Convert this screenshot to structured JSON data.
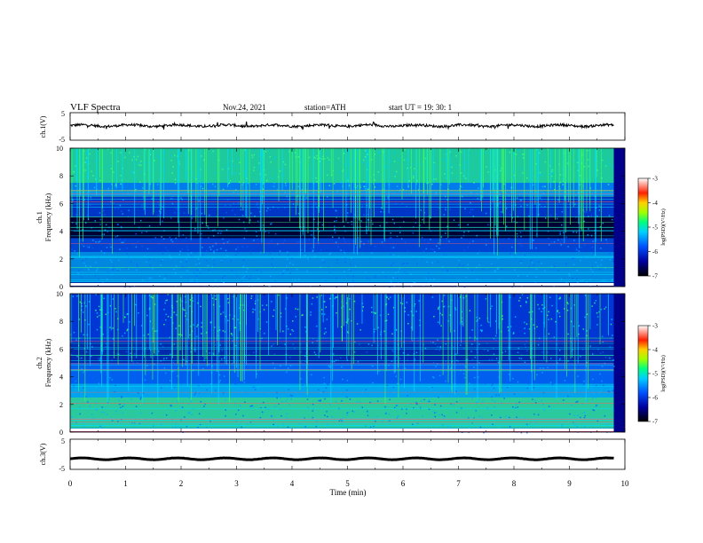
{
  "header": {
    "title": "VLF  Spectra",
    "date": "Nov.24, 2021",
    "station": "station=ATH",
    "start": "start  UT  =   19: 30: 1"
  },
  "chart_data": [
    {
      "type": "line",
      "ylabel": "ch.1(V)",
      "yticks": [
        "5",
        "-5"
      ],
      "ylim": [
        -5,
        5
      ],
      "x_range_min": [
        0,
        9.8
      ],
      "level_v": 0.3,
      "color": "#000000"
    },
    {
      "type": "heatmap",
      "ylabel_top": "ch.1",
      "ylabel": "Frequency  (kHz)",
      "yticks": [
        "0",
        "2",
        "4",
        "6",
        "8",
        "10"
      ],
      "ylim": [
        0,
        10
      ],
      "colorbar": {
        "label": "log(PSD)(V²/Hz)",
        "ticks": [
          "-3",
          "-4",
          "-5",
          "-6",
          "-7"
        ],
        "range": [
          -7,
          -3
        ]
      }
    },
    {
      "type": "heatmap",
      "ylabel_top": "ch.2",
      "ylabel": "Frequency  (kHz)",
      "yticks": [
        "0",
        "2",
        "4",
        "6",
        "8",
        "10"
      ],
      "ylim": [
        0,
        10
      ],
      "colorbar": {
        "label": "log(PSD)(V²/Hz)",
        "ticks": [
          "-3",
          "-4",
          "-5",
          "-6",
          "-7"
        ],
        "range": [
          -7,
          -3
        ]
      }
    },
    {
      "type": "line",
      "ylabel": "ch.3(V)",
      "yticks": [
        "5",
        "-5"
      ],
      "ylim": [
        -5,
        5
      ],
      "x_range_min": [
        0,
        9.8
      ],
      "level_v": -1.5,
      "color": "#000000"
    }
  ],
  "xaxis": {
    "label": "Time  (min)",
    "ticks": [
      "0",
      "1",
      "2",
      "3",
      "4",
      "5",
      "6",
      "7",
      "8",
      "9",
      "10"
    ],
    "range": [
      0,
      10
    ]
  }
}
